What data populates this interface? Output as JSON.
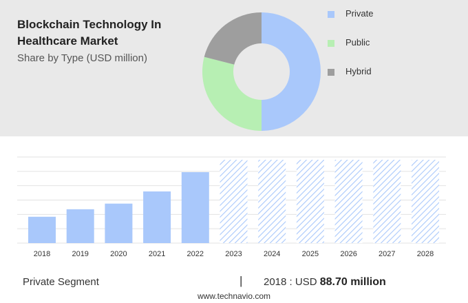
{
  "header": {
    "title": "Blockchain Technology In Healthcare Market",
    "subtitle": "Share by Type (USD million)"
  },
  "donut": {
    "legend": [
      {
        "label": "Private",
        "color": "#a9c8fb"
      },
      {
        "label": "Public",
        "color": "#b7efb3"
      },
      {
        "label": "Hybrid",
        "color": "#9e9e9e"
      }
    ]
  },
  "footer": {
    "segment_label": "Private Segment",
    "separator": "|",
    "year_prefix": "2018 : USD",
    "value_text": "88.70 million",
    "source": "www.technavio.com"
  },
  "colors": {
    "bar": "#a9c8fb",
    "forecast_hatch": "#a9c8fb",
    "grid": "#e2e2e2"
  },
  "chart_data": [
    {
      "type": "pie",
      "categories": [
        "Private",
        "Public",
        "Hybrid"
      ],
      "values": [
        50,
        29,
        21
      ],
      "colors": [
        "#a9c8fb",
        "#b7efb3",
        "#9e9e9e"
      ],
      "title": "Share by Type (USD million)",
      "legend": "right"
    },
    {
      "type": "bar",
      "categories": [
        "2018",
        "2019",
        "2020",
        "2021",
        "2022",
        "2023",
        "2024",
        "2025",
        "2026",
        "2027",
        "2028"
      ],
      "values": [
        88.7,
        114,
        133,
        174,
        239,
        null,
        null,
        null,
        null,
        null,
        null
      ],
      "forecast": [
        false,
        false,
        false,
        false,
        false,
        true,
        true,
        true,
        true,
        true,
        true
      ],
      "ylim": [
        0,
        290
      ],
      "grid": true,
      "xlabel": "",
      "ylabel": ""
    }
  ]
}
